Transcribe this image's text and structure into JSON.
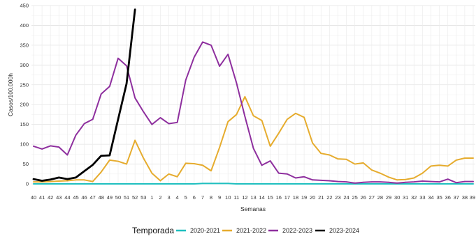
{
  "chart_data": {
    "type": "line",
    "xlabel": "Semanas",
    "ylabel": "Casos/100.000h",
    "ylim": [
      0,
      450
    ],
    "yticks": [
      0,
      50,
      100,
      150,
      200,
      250,
      300,
      350,
      400,
      450
    ],
    "grid": true,
    "legend_position": "bottom",
    "legend_title": "Temporada",
    "x": [
      "40",
      "41",
      "42",
      "43",
      "44",
      "45",
      "46",
      "47",
      "48",
      "49",
      "50",
      "51",
      "52",
      "53",
      "1",
      "2",
      "3",
      "4",
      "5",
      "6",
      "7",
      "8",
      "9",
      "10",
      "11",
      "12",
      "13",
      "14",
      "15",
      "16",
      "17",
      "18",
      "19",
      "20",
      "21",
      "22",
      "23",
      "24",
      "25",
      "26",
      "27",
      "28",
      "29",
      "30",
      "31",
      "32",
      "33",
      "34",
      "35",
      "36",
      "37",
      "38",
      "39"
    ],
    "series": [
      {
        "name": "2020-2021",
        "color": "#1fbfbf",
        "values": [
          0,
          0,
          0,
          0,
          0,
          0,
          0,
          0,
          0,
          0,
          0,
          0,
          0,
          0,
          0,
          0,
          0,
          0,
          0,
          0,
          1,
          1,
          1,
          1,
          0,
          0,
          0,
          0,
          0,
          0,
          0,
          0,
          0,
          0,
          0,
          0,
          0,
          0,
          0,
          0,
          0,
          0,
          0,
          0,
          0,
          0,
          0,
          0,
          0,
          0,
          0,
          0,
          0
        ]
      },
      {
        "name": "2021-2022",
        "color": "#e6ac2e",
        "values": [
          5,
          5,
          6,
          7,
          8,
          10,
          10,
          6,
          30,
          60,
          57,
          50,
          110,
          65,
          27,
          8,
          25,
          18,
          52,
          51,
          47,
          33,
          92,
          157,
          175,
          220,
          172,
          160,
          95,
          128,
          163,
          178,
          168,
          103,
          77,
          73,
          63,
          62,
          50,
          53,
          35,
          27,
          17,
          10,
          11,
          15,
          27,
          45,
          47,
          45,
          60,
          65,
          65
        ]
      },
      {
        "name": "2022-2023",
        "color": "#8e2f9e",
        "values": [
          95,
          88,
          96,
          93,
          73,
          123,
          152,
          163,
          227,
          246,
          317,
          298,
          217,
          182,
          150,
          167,
          152,
          155,
          262,
          320,
          358,
          350,
          297,
          327,
          255,
          170,
          90,
          47,
          58,
          27,
          25,
          15,
          18,
          10,
          9,
          8,
          6,
          5,
          2,
          4,
          5,
          5,
          4,
          2,
          4,
          5,
          7,
          6,
          5,
          12,
          3,
          6,
          6
        ]
      },
      {
        "name": "2023-2024",
        "color": "#000000",
        "values": [
          12,
          8,
          11,
          16,
          12,
          16,
          32,
          48,
          71,
          72,
          163,
          253,
          440,
          null,
          null,
          null,
          null,
          null,
          null,
          null,
          null,
          null,
          null,
          null,
          null,
          null,
          null,
          null,
          null,
          null,
          null,
          null,
          null,
          null,
          null,
          null,
          null,
          null,
          null,
          null,
          null,
          null,
          null,
          null,
          null,
          null,
          null,
          null,
          null,
          null,
          null,
          null,
          null
        ]
      }
    ]
  }
}
